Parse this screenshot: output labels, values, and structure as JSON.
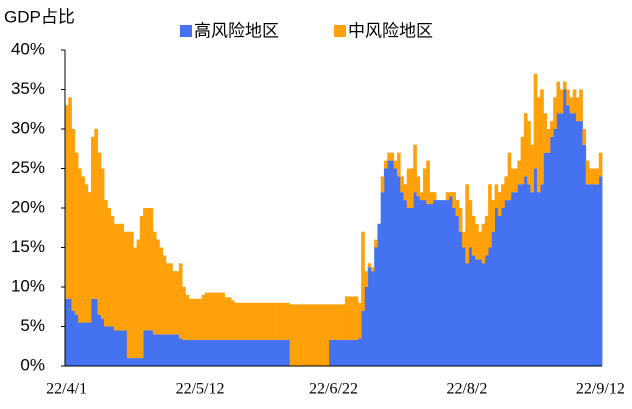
{
  "chart_data": {
    "type": "stacked-area",
    "title": "GDP占比",
    "categories": [
      "22/4/1",
      null,
      null,
      null,
      null,
      null,
      null,
      null,
      null,
      null,
      null,
      null,
      null,
      null,
      null,
      null,
      null,
      null,
      null,
      null,
      null,
      null,
      null,
      null,
      null,
      null,
      null,
      null,
      null,
      null,
      null,
      null,
      null,
      null,
      null,
      null,
      null,
      null,
      null,
      null,
      null,
      "22/5/12",
      null,
      null,
      null,
      null,
      null,
      null,
      null,
      null,
      null,
      null,
      null,
      null,
      null,
      null,
      null,
      null,
      null,
      null,
      null,
      null,
      null,
      null,
      null,
      null,
      null,
      null,
      null,
      null,
      null,
      null,
      null,
      null,
      null,
      null,
      null,
      null,
      null,
      null,
      null,
      null,
      "22/6/22",
      null,
      null,
      null,
      null,
      null,
      null,
      null,
      null,
      null,
      null,
      null,
      null,
      null,
      null,
      null,
      null,
      null,
      null,
      null,
      null,
      null,
      null,
      null,
      null,
      null,
      null,
      null,
      null,
      null,
      null,
      null,
      null,
      null,
      null,
      null,
      null,
      null,
      null,
      null,
      null,
      "22/8/2",
      null,
      null,
      null,
      null,
      null,
      null,
      null,
      null,
      null,
      null,
      null,
      null,
      null,
      null,
      null,
      null,
      null,
      null,
      null,
      null,
      null,
      null,
      null,
      null,
      null,
      null,
      null,
      null,
      null,
      null,
      null,
      null,
      null,
      null,
      null,
      null,
      null,
      null,
      null,
      null,
      "22/9/12"
    ],
    "series": [
      {
        "name": "高风险地区",
        "color": "#4472f0",
        "values": [
          8.5,
          8.5,
          7,
          6.5,
          5.5,
          5.5,
          5.5,
          5.5,
          8.5,
          8.5,
          6.5,
          6,
          5,
          5,
          5,
          4.5,
          4.5,
          4.5,
          4.5,
          1,
          1,
          1,
          1,
          1,
          4.5,
          4.5,
          4.5,
          4,
          4,
          4,
          4,
          4,
          4,
          4,
          4,
          3.5,
          3.3,
          3.3,
          3.3,
          3.3,
          3.3,
          3.3,
          3.3,
          3.3,
          3.3,
          3.3,
          3.3,
          3.3,
          3.3,
          3.3,
          3.3,
          3.3,
          3.3,
          3.3,
          3.3,
          3.3,
          3.3,
          3.3,
          3.3,
          3.3,
          3.3,
          3.3,
          3.3,
          3.3,
          3.3,
          3.3,
          3.3,
          3.3,
          3.3,
          0,
          0,
          0,
          0,
          0,
          0,
          0,
          0,
          0,
          0,
          0,
          0,
          3.3,
          3.3,
          3.3,
          3.3,
          3.3,
          3.3,
          3.3,
          3.3,
          3.3,
          3.5,
          7,
          10,
          12.5,
          12,
          15,
          18,
          22,
          25,
          26,
          26,
          25,
          24,
          22,
          21,
          20,
          20,
          22,
          21.5,
          21,
          21,
          20.5,
          20.5,
          21,
          21,
          21,
          21,
          21,
          21.5,
          20,
          19,
          17,
          15,
          13,
          15,
          14,
          13.5,
          13.5,
          13,
          14,
          15,
          17,
          20,
          19,
          20,
          21,
          21,
          22,
          22,
          23,
          23,
          24,
          23,
          22,
          25,
          22,
          23,
          27,
          27,
          29,
          30,
          32,
          32,
          35,
          33,
          32,
          32,
          31,
          31,
          28,
          23,
          23,
          23,
          23,
          24
        ]
      },
      {
        "name": "中风险地区",
        "color": "#ffa10a",
        "values": [
          24.5,
          25.5,
          23,
          20.5,
          19.5,
          18.5,
          17.5,
          16.5,
          20.5,
          21.5,
          20.5,
          19,
          16,
          15,
          14,
          13.5,
          13.5,
          13.5,
          12.5,
          16,
          16,
          14,
          15,
          18,
          15.5,
          15.5,
          15.5,
          13,
          12,
          11,
          10,
          9,
          9,
          8,
          8,
          9.5,
          6.7,
          5.7,
          5.2,
          5.2,
          5.2,
          5.2,
          5.7,
          6,
          6,
          6,
          6,
          6,
          6,
          5.4,
          5.4,
          5,
          4.7,
          4.7,
          4.7,
          4.7,
          4.7,
          4.7,
          4.7,
          4.7,
          4.7,
          4.7,
          4.7,
          4.7,
          4.7,
          4.7,
          4.7,
          4.7,
          4.7,
          7.8,
          7.8,
          7.8,
          7.8,
          7.8,
          7.8,
          7.8,
          7.8,
          7.8,
          7.8,
          7.8,
          7.8,
          4.5,
          4.5,
          4.5,
          4.5,
          4.5,
          5.5,
          5.5,
          5.5,
          5.5,
          4.5,
          10,
          2,
          0.5,
          0.5,
          1,
          0,
          2,
          1,
          1,
          1,
          1,
          3,
          2,
          2,
          5,
          5,
          6,
          2.5,
          1,
          4,
          5.5,
          1.5,
          1,
          0,
          0,
          0,
          1,
          0.5,
          2,
          2,
          3,
          2,
          10,
          6,
          5,
          4.5,
          3.5,
          5,
          5,
          8,
          4,
          3,
          3,
          3,
          3,
          6,
          3,
          3,
          3,
          6,
          8,
          8,
          6,
          12,
          12,
          12,
          5,
          3,
          2,
          4,
          4,
          3,
          1,
          2,
          2,
          3,
          3,
          4,
          2,
          3,
          2,
          2,
          2,
          3
        ]
      }
    ],
    "ylim": [
      0,
      40
    ],
    "yticks": [
      {
        "value": 0,
        "label": "0%"
      },
      {
        "value": 5,
        "label": "5%"
      },
      {
        "value": 10,
        "label": "10%"
      },
      {
        "value": 15,
        "label": "15%"
      },
      {
        "value": 20,
        "label": "20%"
      },
      {
        "value": 25,
        "label": "25%"
      },
      {
        "value": 30,
        "label": "30%"
      },
      {
        "value": 35,
        "label": "35%"
      },
      {
        "value": 40,
        "label": "40%"
      }
    ],
    "legend": "top"
  }
}
